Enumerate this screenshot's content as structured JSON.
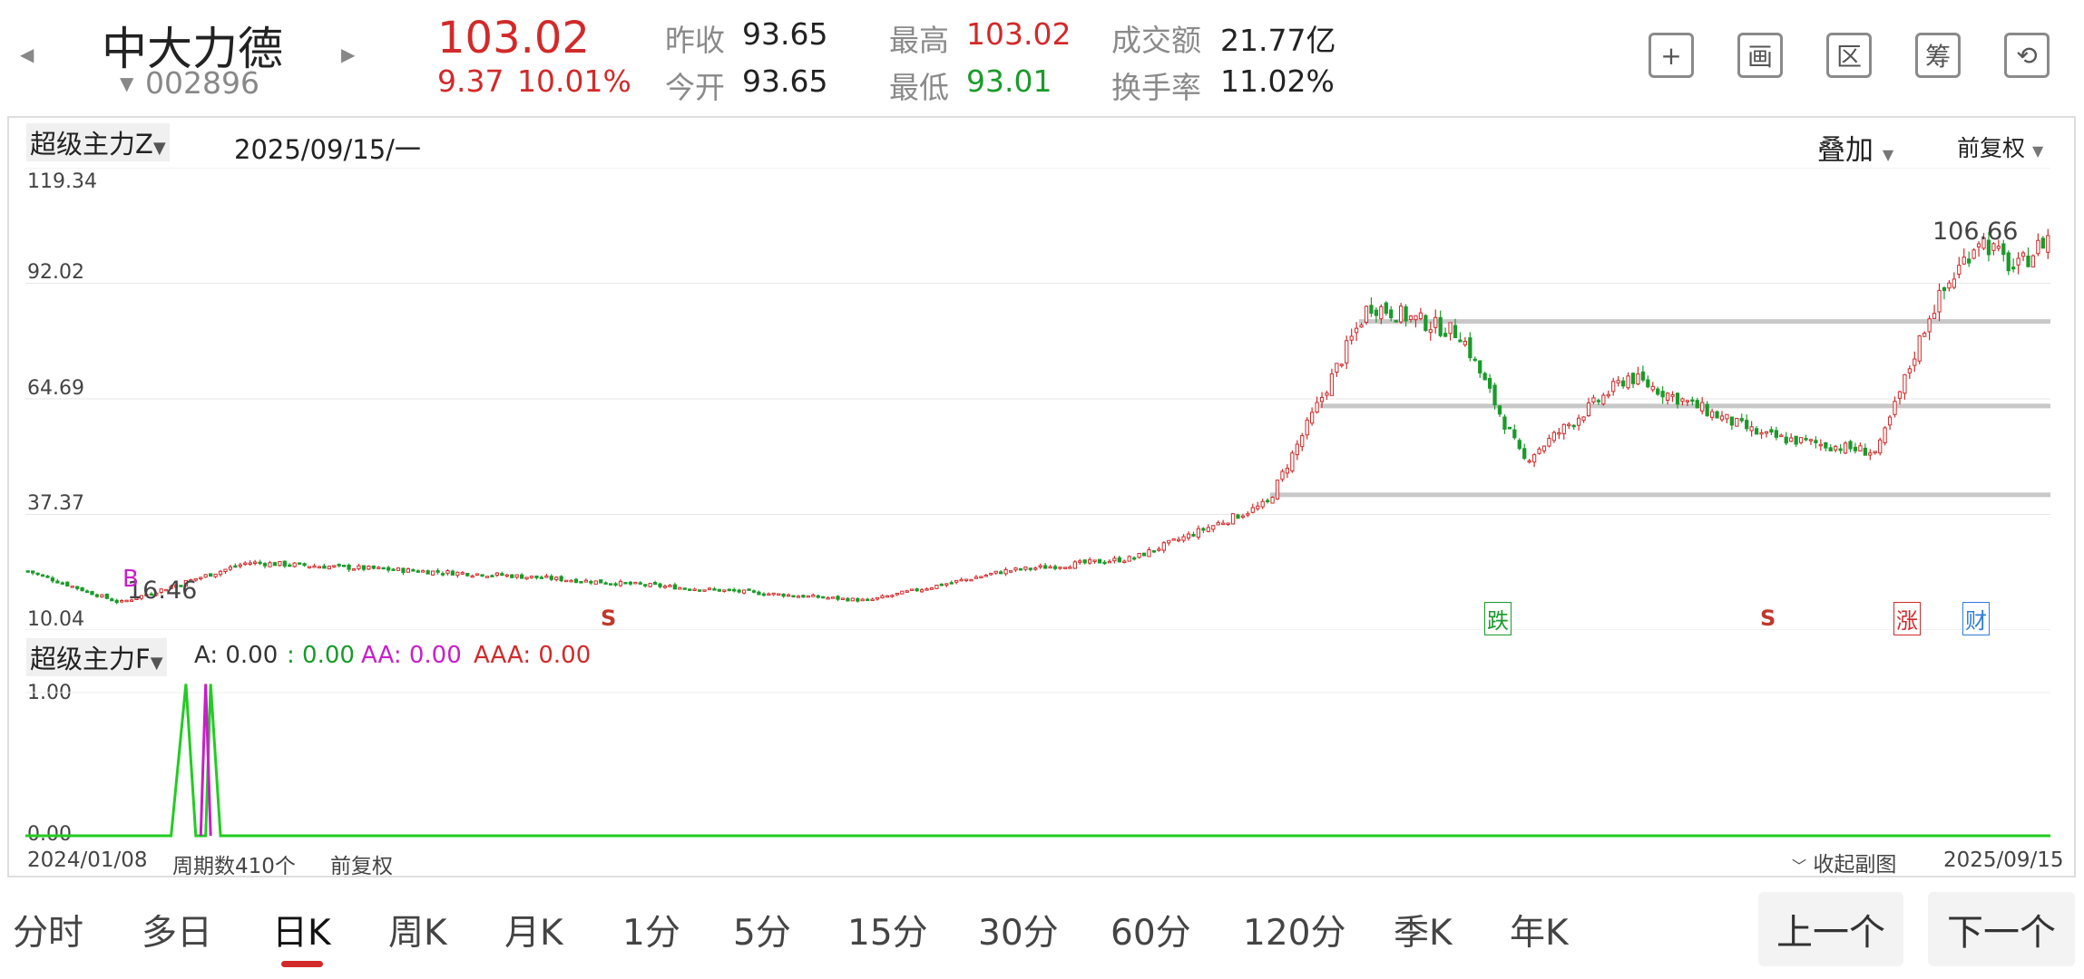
{
  "header": {
    "prev_arrow": "◀",
    "next_arrow": "▶",
    "stock_name": "中大力德",
    "code_arrow": "▼",
    "stock_code": "002896",
    "price": "103.02",
    "change": "9.37",
    "change_pct": "10.01%",
    "prev_close_label": "昨收",
    "prev_close": "93.65",
    "open_label": "今开",
    "open": "93.65",
    "high_label": "最高",
    "high": "103.02",
    "low_label": "最低",
    "low": "93.01",
    "turnover_label": "成交额",
    "turnover": "21.77亿",
    "turnover_rate_label": "换手率",
    "turnover_rate": "11.02%"
  },
  "toolbar": [
    {
      "icon": "plus-icon",
      "glyph": "+"
    },
    {
      "icon": "draw-icon",
      "glyph": "画"
    },
    {
      "icon": "range-icon",
      "glyph": "区"
    },
    {
      "icon": "chips-icon",
      "glyph": "筹"
    },
    {
      "icon": "rotate-screen-icon",
      "glyph": "⟲"
    }
  ],
  "main_chart": {
    "indicator": "超级主力Z",
    "date": "2025/09/15/一",
    "overlay": "叠加",
    "adjust": "前复权",
    "y_ticks": [
      "119.34",
      "92.02",
      "64.69",
      "37.37",
      "10.04"
    ],
    "max_label": "106.66",
    "min_label": "16.46",
    "signal_b": "B",
    "signal_s1": "S",
    "signal_s2": "S",
    "signal_fall": "跌",
    "signal_rise": "涨",
    "signal_fin": "财"
  },
  "sub_chart": {
    "indicator": "超级主力F",
    "a_label": "A: 0.00",
    "b_label": ": 0.00",
    "aa_label": "AA: 0.00",
    "aaa_label": "AAA: 0.00",
    "y_top": "1.00",
    "y_bottom": "0.00"
  },
  "footer": {
    "start_date": "2024/01/08",
    "periods": "周期数410个",
    "adjust": "前复权",
    "collapse": "收起副图",
    "end_date": "2025/09/15"
  },
  "timeframes": [
    "分时",
    "多日",
    "日K",
    "周K",
    "月K",
    "1分",
    "5分",
    "15分",
    "30分",
    "60分",
    "120分",
    "季K",
    "年K"
  ],
  "active_timeframe": "日K",
  "nav": {
    "prev": "上一个",
    "next": "下一个"
  },
  "colors": {
    "up": "#d12a2a",
    "down": "#1b9a2b",
    "magenta": "#c81fc8",
    "accent": "#d12a2a"
  },
  "chart_data": {
    "type": "candlestick",
    "ylim": [
      10.04,
      119.34
    ],
    "y_ticks": [
      119.34,
      92.02,
      64.69,
      37.37,
      10.04
    ],
    "x_start": "2024/01/08",
    "x_end": "2025/09/15",
    "periods": 410,
    "price_path": [
      {
        "date": "2024/01/08",
        "close": 24
      },
      {
        "date": "2024/02/05",
        "close": 16.5
      },
      {
        "date": "2024/03/15",
        "close": 26
      },
      {
        "date": "2024/06/01",
        "close": 23
      },
      {
        "date": "2024/09/20",
        "close": 17
      },
      {
        "date": "2024/11/01",
        "close": 24
      },
      {
        "date": "2024/12/10",
        "close": 27
      },
      {
        "date": "2025/01/20",
        "close": 40
      },
      {
        "date": "2025/02/20",
        "close": 87
      },
      {
        "date": "2025/03/20",
        "close": 80
      },
      {
        "date": "2025/04/08",
        "close": 50
      },
      {
        "date": "2025/05/10",
        "close": 70
      },
      {
        "date": "2025/06/20",
        "close": 56
      },
      {
        "date": "2025/07/25",
        "close": 52
      },
      {
        "date": "2025/08/10",
        "close": 85
      },
      {
        "date": "2025/08/25",
        "close": 103
      },
      {
        "date": "2025/09/05",
        "close": 95
      },
      {
        "date": "2025/09/15",
        "close": 103.02
      }
    ],
    "support_levels": [
      42,
      63,
      83
    ]
  }
}
